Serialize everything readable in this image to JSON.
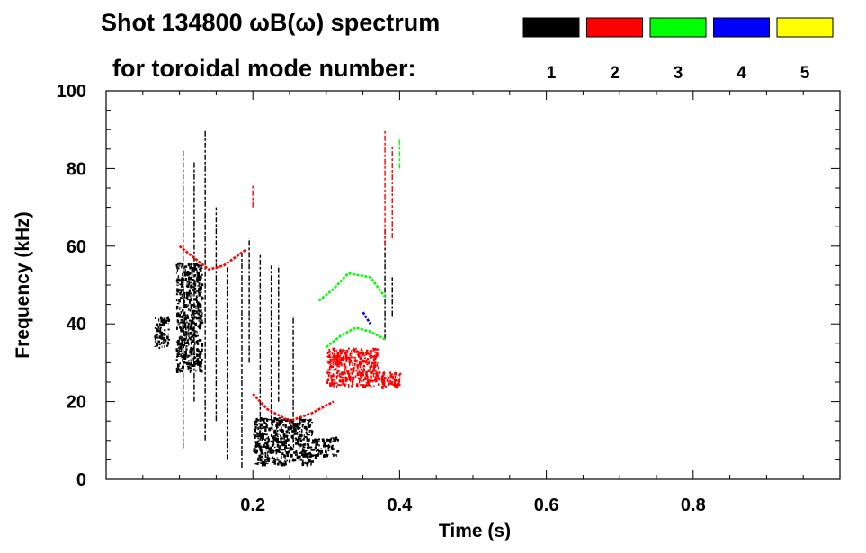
{
  "chart_data": {
    "type": "scatter",
    "title_line1": "Shot 134800 ωB(ω) spectrum",
    "title_line2": "for toroidal mode number:",
    "xlabel": "Time (s)",
    "ylabel": "Frequency (kHz)",
    "xlim": [
      0.0,
      1.0
    ],
    "ylim": [
      0,
      100
    ],
    "xticks": [
      {
        "value": 0.2,
        "label": "0.2"
      },
      {
        "value": 0.4,
        "label": "0.4"
      },
      {
        "value": 0.6,
        "label": "0.6"
      },
      {
        "value": 0.8,
        "label": "0.8"
      }
    ],
    "yticks": [
      {
        "value": 0,
        "label": "0"
      },
      {
        "value": 20,
        "label": "20"
      },
      {
        "value": 40,
        "label": "40"
      },
      {
        "value": 60,
        "label": "60"
      },
      {
        "value": 80,
        "label": "80"
      },
      {
        "value": 100,
        "label": "100"
      }
    ],
    "legend_placement": "top-right",
    "series": [
      {
        "name": "1",
        "color": "#000000",
        "clusters": [
          {
            "t": [
              0.065,
              0.085
            ],
            "f": [
              34,
              42
            ]
          },
          {
            "t": [
              0.095,
              0.13
            ],
            "f": [
              28,
              56
            ]
          },
          {
            "t": [
              0.2,
              0.28
            ],
            "f": [
              4,
              16
            ]
          },
          {
            "t": [
              0.28,
              0.315
            ],
            "f": [
              6,
              11
            ]
          }
        ],
        "streaks": [
          {
            "t": 0.105,
            "f": [
              8,
              85
            ]
          },
          {
            "t": 0.12,
            "f": [
              20,
              82
            ]
          },
          {
            "t": 0.135,
            "f": [
              10,
              90
            ]
          },
          {
            "t": 0.15,
            "f": [
              15,
              70
            ]
          },
          {
            "t": 0.165,
            "f": [
              5,
              55
            ]
          },
          {
            "t": 0.185,
            "f": [
              3,
              58
            ]
          },
          {
            "t": 0.195,
            "f": [
              30,
              62
            ]
          },
          {
            "t": 0.21,
            "f": [
              10,
              58
            ]
          },
          {
            "t": 0.225,
            "f": [
              15,
              55
            ]
          },
          {
            "t": 0.235,
            "f": [
              20,
              55
            ]
          },
          {
            "t": 0.255,
            "f": [
              10,
              42
            ]
          },
          {
            "t": 0.38,
            "f": [
              36,
              65
            ]
          },
          {
            "t": 0.39,
            "f": [
              42,
              52
            ]
          }
        ]
      },
      {
        "name": "2",
        "color": "#ff0000",
        "clusters": [
          {
            "t": [
              0.3,
              0.37
            ],
            "f": [
              24,
              34
            ]
          },
          {
            "t": [
              0.37,
              0.4
            ],
            "f": [
              24,
              28
            ]
          }
        ],
        "streaks": [
          {
            "t": 0.38,
            "f": [
              60,
              90
            ]
          },
          {
            "t": 0.39,
            "f": [
              62,
              86
            ]
          },
          {
            "t": 0.2,
            "f": [
              70,
              76
            ]
          }
        ],
        "curves": [
          {
            "t": [
              0.1,
              0.12,
              0.14,
              0.16,
              0.19
            ],
            "f": [
              60,
              57,
              54,
              55,
              59
            ]
          },
          {
            "t": [
              0.2,
              0.22,
              0.25,
              0.28,
              0.31
            ],
            "f": [
              22,
              18,
              15,
              17,
              20
            ]
          }
        ]
      },
      {
        "name": "3",
        "color": "#00ff00",
        "curves": [
          {
            "t": [
              0.29,
              0.31,
              0.33,
              0.36,
              0.38
            ],
            "f": [
              46,
              49,
              53,
              52,
              47
            ]
          },
          {
            "t": [
              0.3,
              0.32,
              0.34,
              0.36,
              0.38
            ],
            "f": [
              34,
              37,
              39,
              38,
              36
            ]
          }
        ],
        "streaks": [
          {
            "t": 0.4,
            "f": [
              80,
              88
            ]
          }
        ]
      },
      {
        "name": "4",
        "color": "#0000ff",
        "curves": [
          {
            "t": [
              0.35,
              0.36
            ],
            "f": [
              43,
              40
            ]
          }
        ]
      },
      {
        "name": "5",
        "color": "#ffff00"
      }
    ]
  }
}
